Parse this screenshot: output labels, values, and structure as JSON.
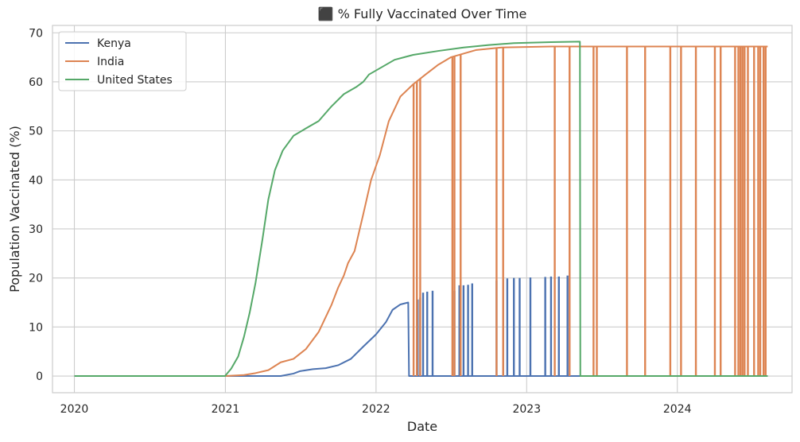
{
  "chart_data": {
    "type": "line",
    "title": "⬛ % Fully Vaccinated Over Time",
    "xlabel": "Date",
    "ylabel": "Population Vaccinated (%)",
    "x_ticks": [
      "2020",
      "2021",
      "2022",
      "2023",
      "2024"
    ],
    "x_tick_dates": [
      "2020-01-01",
      "2021-01-01",
      "2022-01-01",
      "2023-01-01",
      "2024-01-01"
    ],
    "y_ticks": [
      0,
      10,
      20,
      30,
      40,
      50,
      60,
      70
    ],
    "xlim": [
      "2019-11-09",
      "2024-10-05"
    ],
    "ylim": [
      -3.4,
      71.5
    ],
    "grid": true,
    "legend_position": "top-left",
    "series": [
      {
        "name": "Kenya",
        "color": "#4c72b0",
        "smooth_points": [
          [
            "2020-01-01",
            0
          ],
          [
            "2021-01-01",
            0
          ],
          [
            "2021-05-15",
            0
          ],
          [
            "2021-06-15",
            0.5
          ],
          [
            "2021-07-01",
            1.0
          ],
          [
            "2021-08-01",
            1.4
          ],
          [
            "2021-09-01",
            1.6
          ],
          [
            "2021-10-01",
            2.2
          ],
          [
            "2021-11-01",
            3.5
          ],
          [
            "2021-12-01",
            6.0
          ],
          [
            "2022-01-01",
            8.5
          ],
          [
            "2022-01-25",
            11.0
          ],
          [
            "2022-02-10",
            13.5
          ],
          [
            "2022-03-01",
            14.6
          ],
          [
            "2022-03-20",
            15.0
          ]
        ],
        "spikes": [
          [
            "2022-04-12",
            15.6
          ],
          [
            "2022-04-18",
            16.0
          ],
          [
            "2022-04-25",
            17.0
          ],
          [
            "2022-05-05",
            17.2
          ],
          [
            "2022-05-18",
            17.4
          ],
          [
            "2022-07-10",
            17.4
          ],
          [
            "2022-07-22",
            18.5
          ],
          [
            "2022-08-01",
            18.5
          ],
          [
            "2022-08-12",
            18.6
          ],
          [
            "2022-08-22",
            18.9
          ],
          [
            "2022-10-20",
            19.5
          ],
          [
            "2022-11-05",
            19.8
          ],
          [
            "2022-11-15",
            19.9
          ],
          [
            "2022-12-01",
            20.0
          ],
          [
            "2022-12-15",
            20.0
          ],
          [
            "2023-01-10",
            20.1
          ],
          [
            "2023-02-15",
            20.2
          ],
          [
            "2023-03-01",
            20.3
          ],
          [
            "2023-03-20",
            20.3
          ],
          [
            "2023-04-10",
            20.5
          ]
        ],
        "end_date": "2024-08-07"
      },
      {
        "name": "India",
        "color": "#dd8452",
        "smooth_points": [
          [
            "2020-01-01",
            0
          ],
          [
            "2021-01-01",
            0
          ],
          [
            "2021-02-15",
            0.2
          ],
          [
            "2021-03-15",
            0.6
          ],
          [
            "2021-04-15",
            1.2
          ],
          [
            "2021-05-15",
            2.8
          ],
          [
            "2021-06-15",
            3.5
          ],
          [
            "2021-07-15",
            5.5
          ],
          [
            "2021-08-15",
            9.0
          ],
          [
            "2021-09-15",
            14.5
          ],
          [
            "2021-10-01",
            18.0
          ],
          [
            "2021-10-15",
            20.5
          ],
          [
            "2021-10-25",
            23.0
          ],
          [
            "2021-11-10",
            25.5
          ],
          [
            "2021-12-01",
            33.0
          ],
          [
            "2021-12-20",
            40.0
          ],
          [
            "2022-01-10",
            45.0
          ],
          [
            "2022-02-01",
            52.0
          ],
          [
            "2022-03-01",
            57.0
          ],
          [
            "2022-04-01",
            59.5
          ],
          [
            "2022-05-01",
            61.5
          ],
          [
            "2022-06-01",
            63.5
          ],
          [
            "2022-07-01",
            65.0
          ],
          [
            "2022-09-01",
            66.5
          ],
          [
            "2022-11-01",
            67.0
          ],
          [
            "2023-03-01",
            67.2
          ],
          [
            "2024-08-07",
            67.2
          ]
        ],
        "drops": [
          "2022-04-02",
          "2022-04-10",
          "2022-04-18",
          "2022-07-05",
          "2022-07-10",
          "2022-07-25",
          "2022-10-20",
          "2022-11-05",
          "2023-03-10",
          "2023-04-15",
          "2023-06-12",
          "2023-06-20",
          "2023-09-01",
          "2023-10-15",
          "2023-12-15",
          "2024-01-10",
          "2024-02-15",
          "2024-04-01",
          "2024-04-15",
          "2024-05-20",
          "2024-05-28",
          "2024-06-02",
          "2024-06-07",
          "2024-06-12",
          "2024-06-20",
          "2024-07-05",
          "2024-07-15",
          "2024-07-20",
          "2024-07-28",
          "2024-08-02"
        ],
        "end_date": "2024-08-07"
      },
      {
        "name": "United States",
        "color": "#55a868",
        "smooth_points": [
          [
            "2020-01-01",
            0
          ],
          [
            "2020-12-31",
            0
          ],
          [
            "2021-01-15",
            1.5
          ],
          [
            "2021-02-01",
            4.0
          ],
          [
            "2021-02-15",
            8.0
          ],
          [
            "2021-03-01",
            13.0
          ],
          [
            "2021-03-15",
            19.0
          ],
          [
            "2021-04-01",
            28.0
          ],
          [
            "2021-04-15",
            36.0
          ],
          [
            "2021-05-01",
            42.0
          ],
          [
            "2021-05-20",
            46.0
          ],
          [
            "2021-06-15",
            49.0
          ],
          [
            "2021-07-15",
            50.5
          ],
          [
            "2021-08-15",
            52.0
          ],
          [
            "2021-09-15",
            55.0
          ],
          [
            "2021-10-15",
            57.5
          ],
          [
            "2021-11-15",
            59.0
          ],
          [
            "2021-12-01",
            60.0
          ],
          [
            "2021-12-15",
            61.5
          ],
          [
            "2022-01-15",
            63.0
          ],
          [
            "2022-02-15",
            64.5
          ],
          [
            "2022-04-01",
            65.5
          ],
          [
            "2022-06-01",
            66.3
          ],
          [
            "2022-08-01",
            67.0
          ],
          [
            "2022-10-01",
            67.5
          ],
          [
            "2022-12-01",
            67.9
          ],
          [
            "2023-03-01",
            68.1
          ],
          [
            "2023-05-10",
            68.2
          ],
          [
            "2023-05-11",
            0
          ],
          [
            "2024-08-07",
            0
          ]
        ],
        "end_date": "2024-08-07"
      }
    ]
  }
}
